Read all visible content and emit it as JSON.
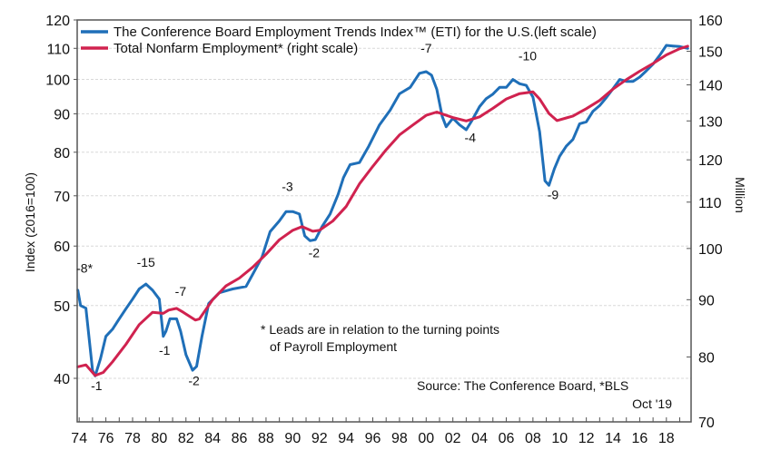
{
  "chart_data": {
    "type": "line",
    "title": "",
    "xlabel": "",
    "ylabel": "Index (2016=100)",
    "ylabel_right": "Million",
    "x_tick_labels": [
      "74",
      "76",
      "78",
      "80",
      "82",
      "84",
      "86",
      "88",
      "90",
      "92",
      "94",
      "96",
      "98",
      "00",
      "02",
      "04",
      "06",
      "08",
      "10",
      "12",
      "14",
      "16",
      "18"
    ],
    "x_ticks": [
      1974,
      1976,
      1978,
      1980,
      1982,
      1984,
      1986,
      1988,
      1990,
      1992,
      1994,
      1996,
      1998,
      2000,
      2002,
      2004,
      2006,
      2008,
      2010,
      2012,
      2014,
      2016,
      2018
    ],
    "xlim": [
      1973.85,
      2019.85
    ],
    "y_left": {
      "scale": "log",
      "lim": [
        40,
        120
      ],
      "ticks": [
        40,
        50,
        60,
        70,
        80,
        90,
        100,
        110,
        120
      ],
      "tick_labels": [
        "40",
        "50",
        "60",
        "70",
        "80",
        "90",
        "100",
        "110",
        "120"
      ]
    },
    "y_right": {
      "scale": "log",
      "lim": [
        70,
        160
      ],
      "ticks": [
        70,
        80,
        90,
        100,
        110,
        120,
        130,
        140,
        150,
        160
      ],
      "tick_labels": [
        "70",
        "80",
        "90",
        "100",
        "110",
        "120",
        "130",
        "140",
        "150",
        "160"
      ]
    },
    "grid": true,
    "legend_position": "top-left",
    "series": [
      {
        "name": "The Conference Board Employment Trends Index™ (ETI) for the U.S.(left scale)",
        "axis": "left",
        "color": "#1f6fb8",
        "x": [
          1973.9,
          1974.1,
          1974.5,
          1975.0,
          1975.2,
          1975.6,
          1976.0,
          1976.5,
          1977.0,
          1977.5,
          1978.0,
          1978.5,
          1979.0,
          1979.5,
          1980.0,
          1980.3,
          1980.5,
          1980.8,
          1981.3,
          1981.6,
          1982.0,
          1982.5,
          1982.8,
          1983.2,
          1983.7,
          1984.5,
          1985.5,
          1986.5,
          1987.0,
          1987.7,
          1988.3,
          1989.0,
          1989.5,
          1990.0,
          1990.5,
          1990.9,
          1991.3,
          1991.7,
          1992.2,
          1992.8,
          1993.4,
          1993.8,
          1994.3,
          1995.0,
          1995.7,
          1996.5,
          1997.3,
          1998.0,
          1998.8,
          1999.5,
          2000.0,
          2000.4,
          2000.8,
          2001.2,
          2001.5,
          2002.0,
          2002.5,
          2003.0,
          2003.4,
          2004.0,
          2004.5,
          2005.0,
          2005.5,
          2006.0,
          2006.5,
          2007.0,
          2007.5,
          2008.0,
          2008.5,
          2008.9,
          2009.2,
          2009.6,
          2010.0,
          2010.5,
          2011.0,
          2011.5,
          2012.0,
          2012.5,
          2013.0,
          2013.5,
          2014.0,
          2014.5,
          2015.0,
          2015.5,
          2016.0,
          2016.5,
          2017.0,
          2017.5,
          2018.0,
          2018.5,
          2019.0,
          2019.6
        ],
        "values": [
          52.4,
          50,
          49.6,
          41,
          40.3,
          42.5,
          45.5,
          46.5,
          48,
          49.5,
          51,
          52.6,
          53.4,
          52.4,
          51,
          45.5,
          46.2,
          48,
          48,
          46.2,
          43,
          41,
          41.5,
          45.5,
          50.3,
          52,
          52.6,
          53,
          55,
          58,
          62.7,
          64.8,
          66.7,
          66.7,
          66.2,
          61.9,
          61,
          61.2,
          63.7,
          66.2,
          70.3,
          74,
          77,
          77.5,
          81.5,
          87,
          91,
          95.7,
          97.6,
          101.9,
          102.4,
          101.3,
          97,
          89.3,
          86.5,
          88.8,
          87,
          85.7,
          88,
          92,
          94.3,
          95.6,
          97.6,
          97.6,
          100,
          98.7,
          98.2,
          94.7,
          85.2,
          73.3,
          72.3,
          76,
          79,
          81.5,
          83.2,
          87.3,
          87.8,
          90.7,
          92.3,
          94.6,
          97.2,
          100,
          99.4,
          99.4,
          100.7,
          102.7,
          104.8,
          107.7,
          111,
          110.8,
          110.6,
          110
        ]
      },
      {
        "name": "Total Nonfarm Employment* (right scale)",
        "axis": "right",
        "color": "#d0224f",
        "x": [
          1973.9,
          1974.5,
          1975.2,
          1975.8,
          1976.5,
          1977.5,
          1978.5,
          1979.5,
          1980.3,
          1980.7,
          1981.3,
          1981.8,
          1982.7,
          1983.0,
          1984.0,
          1985.0,
          1986.0,
          1987.0,
          1988.0,
          1989.0,
          1990.0,
          1990.7,
          1991.5,
          1992.0,
          1993.0,
          1994.0,
          1995.0,
          1996.0,
          1997.0,
          1998.0,
          1999.0,
          2000.0,
          2000.8,
          2001.5,
          2002.0,
          2003.0,
          2004.0,
          2005.0,
          2006.0,
          2007.0,
          2008.0,
          2008.5,
          2009.2,
          2009.8,
          2010.5,
          2011.0,
          2012.0,
          2013.0,
          2014.0,
          2015.0,
          2016.0,
          2017.0,
          2018.0,
          2019.0,
          2019.6
        ],
        "values": [
          78.4,
          78.7,
          77.0,
          77.5,
          79.2,
          82.1,
          85.5,
          87.7,
          87.5,
          88.1,
          88.4,
          87.7,
          86.3,
          86.5,
          90,
          92.6,
          94.1,
          96.2,
          98.8,
          101.8,
          103.8,
          104.6,
          103.6,
          103.8,
          105.8,
          109.0,
          114.2,
          118.4,
          122.5,
          126.3,
          128.9,
          131.5,
          132.4,
          131.5,
          130.9,
          130.0,
          131.1,
          133.4,
          136.0,
          137.5,
          138,
          136,
          132,
          130.1,
          130.8,
          131.3,
          133.3,
          135.6,
          138.8,
          141.5,
          144.0,
          146.3,
          148.9,
          150.8,
          151.6
        ]
      }
    ],
    "annotations": [
      {
        "text": "-8*",
        "x": 1974.4,
        "y": 55.3,
        "axis": "left"
      },
      {
        "text": "-15",
        "x": 1979.0,
        "y": 56.3,
        "axis": "left"
      },
      {
        "text": "-1",
        "x": 1975.3,
        "y": 38.6,
        "axis": "left"
      },
      {
        "text": "-1",
        "x": 1980.4,
        "y": 43.0,
        "axis": "left"
      },
      {
        "text": "-7",
        "x": 1981.6,
        "y": 51.5,
        "axis": "left"
      },
      {
        "text": "-2",
        "x": 1982.6,
        "y": 39.2,
        "axis": "left"
      },
      {
        "text": "-3",
        "x": 1989.6,
        "y": 71.0,
        "axis": "left"
      },
      {
        "text": "-2",
        "x": 1991.6,
        "y": 58.0,
        "axis": "left"
      },
      {
        "text": "-7",
        "x": 2000.0,
        "y": 108.5,
        "axis": "left"
      },
      {
        "text": "-4",
        "x": 2003.3,
        "y": 82.6,
        "axis": "left"
      },
      {
        "text": "-10",
        "x": 2007.6,
        "y": 106.0,
        "axis": "left"
      },
      {
        "text": "-9",
        "x": 2009.5,
        "y": 69.3,
        "axis": "left"
      }
    ],
    "notes": [
      "* Leads are in relation to the turning points",
      "of Payroll Employment"
    ],
    "source": "Source: The Conference Board, *BLS",
    "date": "Oct '19"
  }
}
